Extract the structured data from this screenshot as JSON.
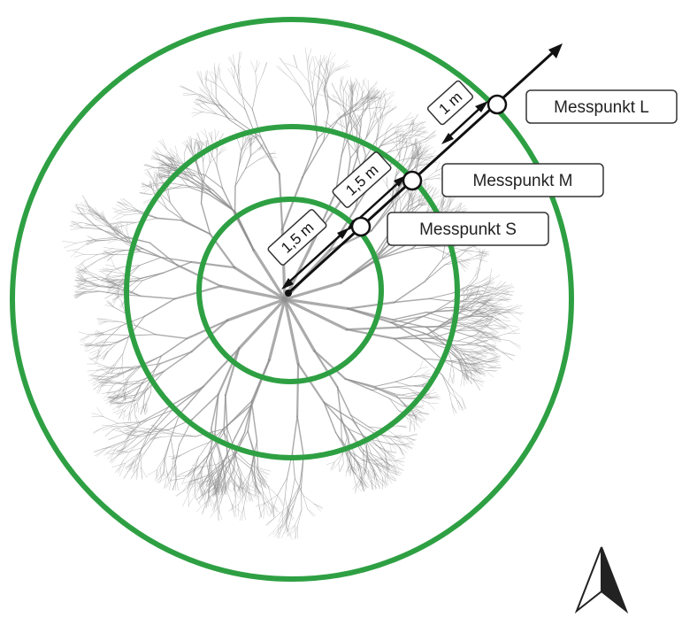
{
  "diagram": {
    "colors": {
      "ring": "#2ea043",
      "line": "#111111",
      "tree": "#8a8a8a",
      "label_border": "#333333",
      "background": "#ffffff"
    },
    "measurement_points": [
      {
        "id": "s",
        "label": "Messpunkt S"
      },
      {
        "id": "m",
        "label": "Messpunkt M"
      },
      {
        "id": "l",
        "label": "Messpunkt L"
      }
    ],
    "distances": [
      {
        "id": "center-to-s",
        "label": "1,5 m"
      },
      {
        "id": "s-to-m",
        "label": "1,5 m"
      },
      {
        "id": "m-to-l",
        "label": "1 m"
      }
    ],
    "icons": {
      "north_arrow": "north-arrow-icon",
      "tree": "tree-canopy-icon"
    }
  }
}
